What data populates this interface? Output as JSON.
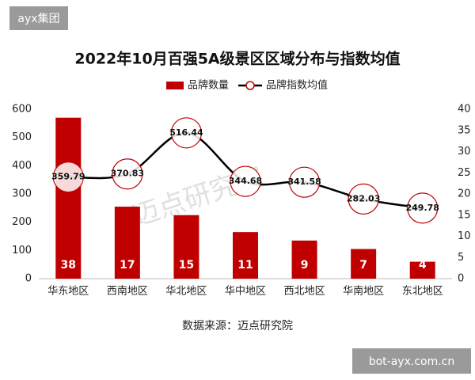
{
  "brand_tag": "ayx集团",
  "site_tag": "bot-ayx.com.cn",
  "watermark": "迈点研究院",
  "chart_data": {
    "type": "bar",
    "title": "2022年10月百强5A级景区区域分布与指数均值",
    "source": "数据来源：迈点研究院",
    "categories": [
      "华东地区",
      "西南地区",
      "华北地区",
      "华中地区",
      "西北地区",
      "华南地区",
      "东北地区"
    ],
    "series": [
      {
        "name": "品牌数量",
        "type": "bar",
        "axis": "y2",
        "color": "#c00000",
        "values": [
          38,
          17,
          15,
          11,
          9,
          7,
          4
        ]
      },
      {
        "name": "品牌指数均值",
        "type": "line",
        "axis": "y",
        "color": "#000000",
        "values": [
          359.79,
          370.83,
          516.44,
          344.68,
          341.58,
          282.03,
          249.78
        ]
      }
    ],
    "ylim": [
      0,
      600
    ],
    "yticks": [
      0,
      100,
      200,
      300,
      400,
      500,
      600
    ],
    "y2lim": [
      0,
      40
    ],
    "y2ticks": [
      0,
      5,
      10,
      15,
      20,
      25,
      30,
      35,
      40
    ],
    "legend": "top"
  }
}
